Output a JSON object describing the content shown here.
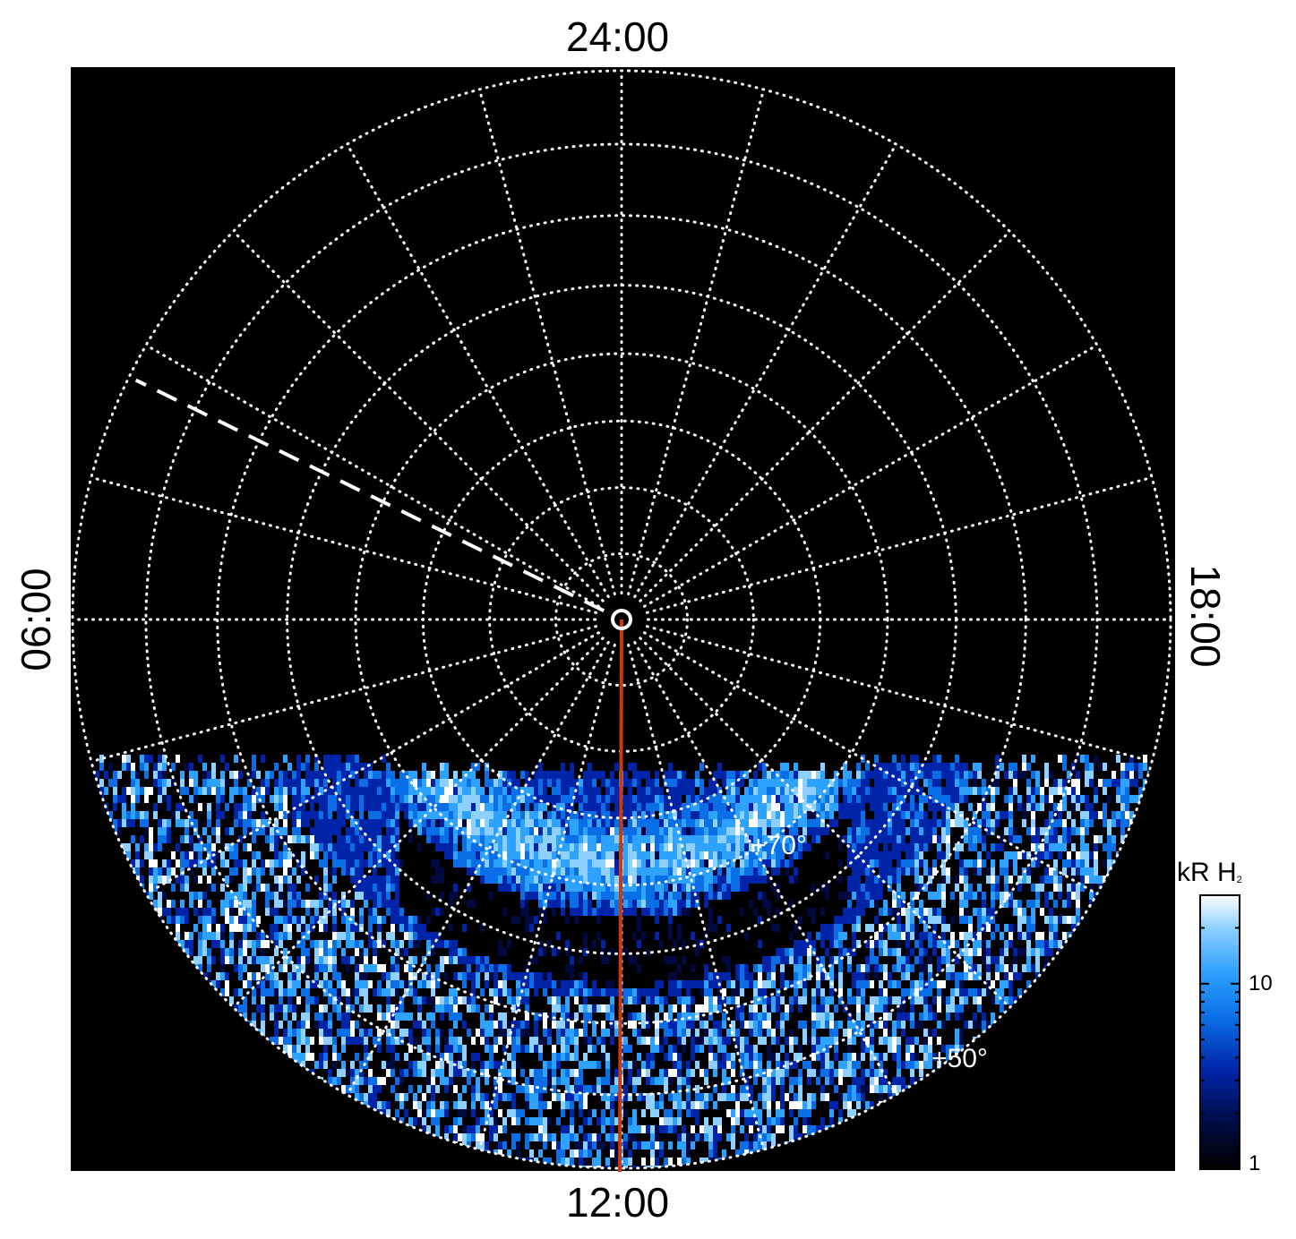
{
  "chart_data": {
    "type": "heatmap",
    "projection": "polar-stereographic",
    "title": "",
    "local_time_labels": {
      "top": "24:00",
      "bottom": "12:00",
      "left": "06:00",
      "right": "18:00"
    },
    "latitude_grid": [
      90,
      85,
      80,
      75,
      70,
      65,
      60,
      55,
      50
    ],
    "longitude_grid_step_deg": 15,
    "latitude_labels": [
      {
        "text": "+70°",
        "latitude": 70
      },
      {
        "text": "+50°",
        "latitude": 50
      }
    ],
    "grid": true,
    "grid_style": "dotted",
    "coverage": "dayside (approximately 07:00 to 17:00 local time)",
    "features": [
      {
        "kind": "auroral-oval-emission",
        "latitude_range": [
          69,
          75
        ],
        "peak_local_time": "12:00"
      },
      {
        "kind": "noon-meridian-line",
        "local_time": "12:00",
        "color": "#c83a10"
      },
      {
        "kind": "dashed-meridian",
        "local_time": "~04:15"
      },
      {
        "kind": "pole-marker",
        "latitude": 90
      }
    ],
    "colorbar": {
      "title": "kR H",
      "title_subscript": "2",
      "scale": "log",
      "range": [
        1,
        30
      ],
      "ticks": [
        {
          "value": 10,
          "label": "10"
        },
        {
          "value": 1,
          "label": "1"
        }
      ],
      "colors": [
        "#000000",
        "#000a40",
        "#0024a8",
        "#0a6ee6",
        "#2ea2ff",
        "#8ed0ff",
        "#ffffff"
      ]
    }
  }
}
